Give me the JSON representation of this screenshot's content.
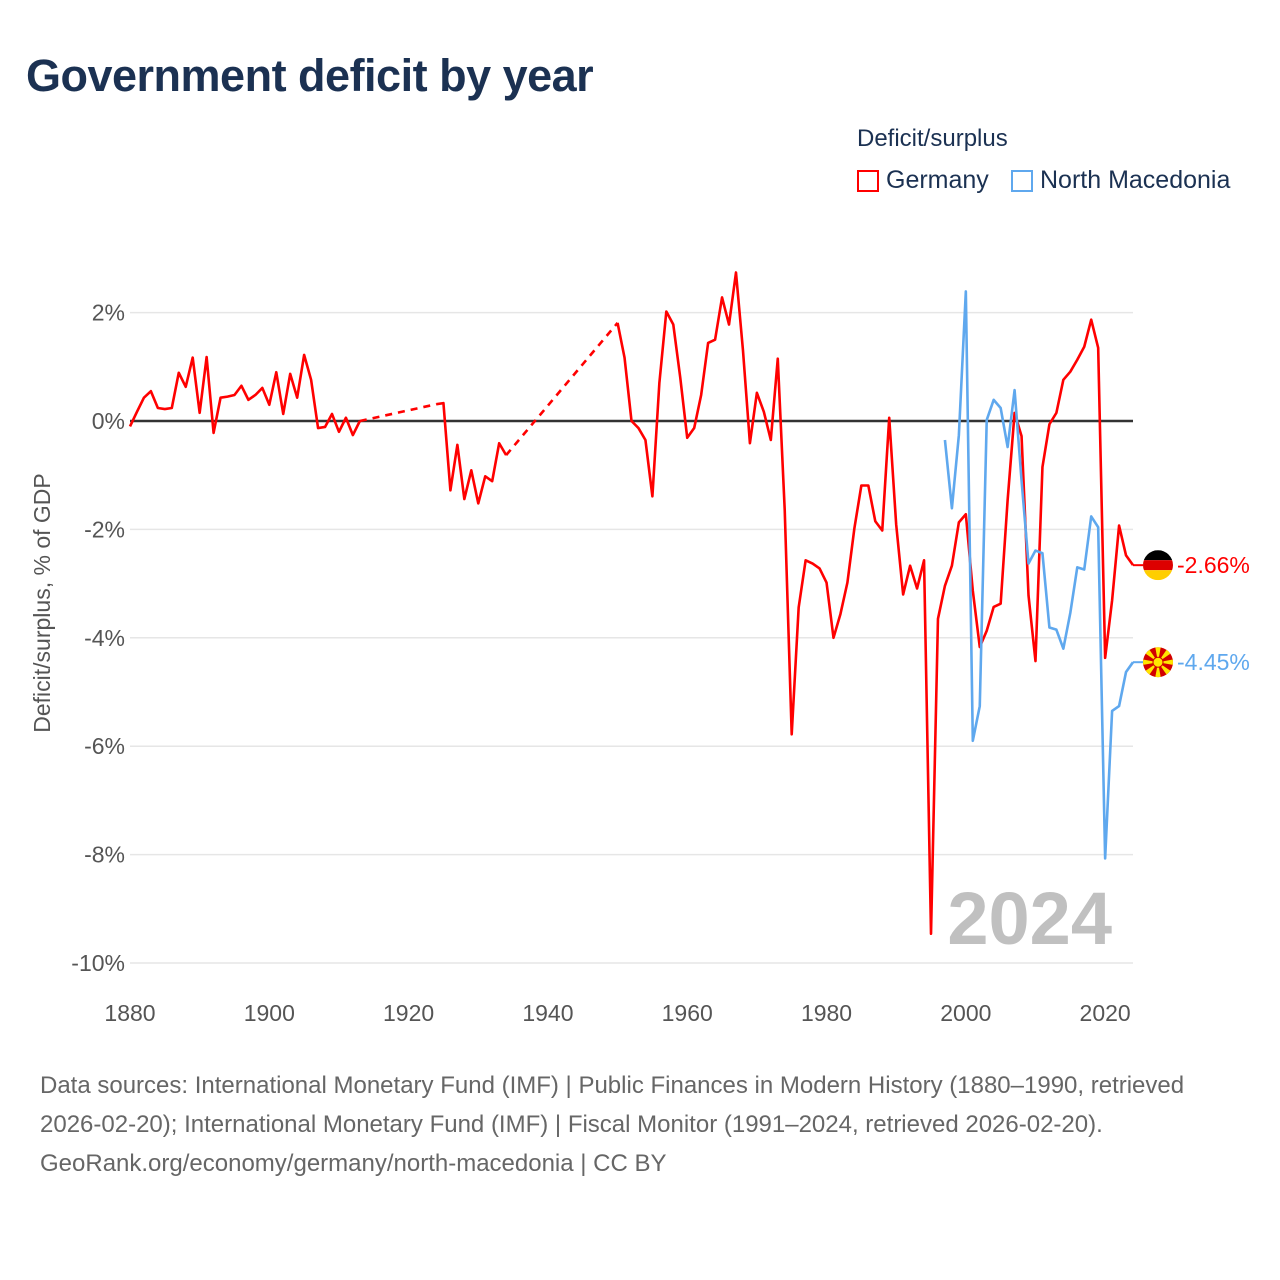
{
  "title": "Government deficit by year",
  "legend": {
    "title": "Deficit/surplus",
    "items": [
      {
        "label": "Germany",
        "color": "#ff0000"
      },
      {
        "label": "North Macedonia",
        "color": "#5fa8ee"
      }
    ]
  },
  "watermark_year": "2024",
  "footer": {
    "sources": "Data sources: International Monetary Fund (IMF) | Public Finances in Modern History (1880–1990, retrieved 2026-02-20); International Monetary Fund (IMF) | Fiscal Monitor (1991–2024, retrieved 2026-02-20).",
    "credit": "GeoRank.org/economy/germany/north-macedonia | CC BY"
  },
  "chart_data": {
    "type": "line",
    "title": "Government deficit by year",
    "xlabel": "",
    "ylabel": "Deficit/surplus, % of GDP",
    "xlim": [
      1880,
      2024
    ],
    "ylim": [
      -10,
      2.8
    ],
    "x_ticks": [
      1880,
      1900,
      1920,
      1940,
      1960,
      1980,
      2000,
      2020
    ],
    "x_tick_labels": [
      "1880",
      "1900",
      "1920",
      "1940",
      "1960",
      "1980",
      "2000",
      "2020"
    ],
    "y_ticks": [
      2,
      0,
      -2,
      -4,
      -6,
      -8,
      -10
    ],
    "y_tick_labels": [
      "2%",
      "0%",
      "-2%",
      "-4%",
      "-6%",
      "-8%",
      "-10%"
    ],
    "grid": true,
    "legend_position": "top-right",
    "series": [
      {
        "name": "Germany",
        "color": "#ff0000",
        "end_label": "-2.66%",
        "flag": "germany-flag",
        "points": [
          [
            1880,
            -0.1
          ],
          [
            1881,
            0.17
          ],
          [
            1882,
            0.43
          ],
          [
            1883,
            0.55
          ],
          [
            1884,
            0.24
          ],
          [
            1885,
            0.22
          ],
          [
            1886,
            0.24
          ],
          [
            1887,
            0.89
          ],
          [
            1888,
            0.63
          ],
          [
            1889,
            1.17
          ],
          [
            1890,
            0.15
          ],
          [
            1891,
            1.18
          ],
          [
            1892,
            -0.22
          ],
          [
            1893,
            0.43
          ],
          [
            1894,
            0.45
          ],
          [
            1895,
            0.48
          ],
          [
            1896,
            0.65
          ],
          [
            1897,
            0.39
          ],
          [
            1898,
            0.48
          ],
          [
            1899,
            0.61
          ],
          [
            1900,
            0.3
          ],
          [
            1901,
            0.9
          ],
          [
            1902,
            0.13
          ],
          [
            1903,
            0.87
          ],
          [
            1904,
            0.43
          ],
          [
            1905,
            1.22
          ],
          [
            1906,
            0.76
          ],
          [
            1907,
            -0.13
          ],
          [
            1908,
            -0.11
          ],
          [
            1909,
            0.13
          ],
          [
            1910,
            -0.2
          ],
          [
            1911,
            0.06
          ],
          [
            1912,
            -0.26
          ],
          [
            1913,
            0.0
          ],
          [
            1924,
            0.31
          ],
          [
            1925,
            0.33
          ],
          [
            1926,
            -1.28
          ],
          [
            1927,
            -0.44
          ],
          [
            1928,
            -1.44
          ],
          [
            1929,
            -0.91
          ],
          [
            1930,
            -1.52
          ],
          [
            1931,
            -1.02
          ],
          [
            1932,
            -1.11
          ],
          [
            1933,
            -0.41
          ],
          [
            1934,
            -0.63
          ],
          [
            1950,
            1.81
          ],
          [
            1951,
            1.17
          ],
          [
            1952,
            0.0
          ],
          [
            1953,
            -0.13
          ],
          [
            1954,
            -0.35
          ],
          [
            1955,
            -1.39
          ],
          [
            1956,
            0.7
          ],
          [
            1957,
            2.02
          ],
          [
            1958,
            1.78
          ],
          [
            1959,
            0.8
          ],
          [
            1960,
            -0.31
          ],
          [
            1961,
            -0.13
          ],
          [
            1962,
            0.48
          ],
          [
            1963,
            1.44
          ],
          [
            1964,
            1.5
          ],
          [
            1965,
            2.28
          ],
          [
            1966,
            1.78
          ],
          [
            1967,
            2.74
          ],
          [
            1968,
            1.31
          ],
          [
            1969,
            -0.41
          ],
          [
            1970,
            0.52
          ],
          [
            1971,
            0.17
          ],
          [
            1972,
            -0.35
          ],
          [
            1973,
            1.15
          ],
          [
            1974,
            -1.65
          ],
          [
            1975,
            -5.78
          ],
          [
            1976,
            -3.44
          ],
          [
            1977,
            -2.57
          ],
          [
            1978,
            -2.63
          ],
          [
            1979,
            -2.72
          ],
          [
            1980,
            -2.98
          ],
          [
            1981,
            -4.0
          ],
          [
            1982,
            -3.56
          ],
          [
            1983,
            -2.98
          ],
          [
            1984,
            -1.98
          ],
          [
            1985,
            -1.19
          ],
          [
            1986,
            -1.19
          ],
          [
            1987,
            -1.85
          ],
          [
            1988,
            -2.02
          ],
          [
            1989,
            0.06
          ],
          [
            1990,
            -1.91
          ],
          [
            1991,
            -3.2
          ],
          [
            1992,
            -2.67
          ],
          [
            1993,
            -3.09
          ],
          [
            1994,
            -2.57
          ],
          [
            1995,
            -9.46
          ],
          [
            1996,
            -3.65
          ],
          [
            1997,
            -3.04
          ],
          [
            1998,
            -2.67
          ],
          [
            1999,
            -1.87
          ],
          [
            2000,
            -1.72
          ],
          [
            2001,
            -3.13
          ],
          [
            2002,
            -4.17
          ],
          [
            2003,
            -3.87
          ],
          [
            2004,
            -3.43
          ],
          [
            2005,
            -3.37
          ],
          [
            2006,
            -1.46
          ],
          [
            2007,
            0.15
          ],
          [
            2008,
            -0.28
          ],
          [
            2009,
            -3.22
          ],
          [
            2010,
            -4.43
          ],
          [
            2011,
            -0.85
          ],
          [
            2012,
            -0.06
          ],
          [
            2013,
            0.15
          ],
          [
            2014,
            0.76
          ],
          [
            2015,
            0.91
          ],
          [
            2016,
            1.13
          ],
          [
            2017,
            1.37
          ],
          [
            2018,
            1.87
          ],
          [
            2019,
            1.35
          ],
          [
            2020,
            -4.37
          ],
          [
            2021,
            -3.31
          ],
          [
            2022,
            -1.93
          ],
          [
            2023,
            -2.48
          ],
          [
            2024,
            -2.66
          ]
        ]
      },
      {
        "name": "North Macedonia",
        "color": "#5fa8ee",
        "end_label": "-4.45%",
        "flag": "north-macedonia-flag",
        "points": [
          [
            1997,
            -0.35
          ],
          [
            1998,
            -1.61
          ],
          [
            1999,
            -0.26
          ],
          [
            2000,
            2.39
          ],
          [
            2001,
            -5.9
          ],
          [
            2002,
            -5.26
          ],
          [
            2003,
            0.02
          ],
          [
            2004,
            0.39
          ],
          [
            2005,
            0.24
          ],
          [
            2006,
            -0.48
          ],
          [
            2007,
            0.57
          ],
          [
            2008,
            -1.1
          ],
          [
            2009,
            -2.63
          ],
          [
            2010,
            -2.39
          ],
          [
            2011,
            -2.44
          ],
          [
            2012,
            -3.81
          ],
          [
            2013,
            -3.85
          ],
          [
            2014,
            -4.2
          ],
          [
            2015,
            -3.54
          ],
          [
            2016,
            -2.7
          ],
          [
            2017,
            -2.74
          ],
          [
            2018,
            -1.76
          ],
          [
            2019,
            -1.96
          ],
          [
            2020,
            -8.07
          ],
          [
            2021,
            -5.35
          ],
          [
            2022,
            -5.26
          ],
          [
            2023,
            -4.63
          ],
          [
            2024,
            -4.45
          ]
        ]
      }
    ]
  }
}
